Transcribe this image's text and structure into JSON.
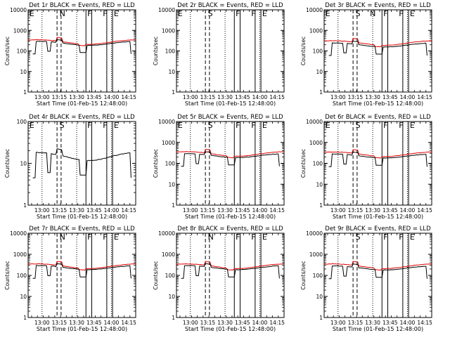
{
  "figure": {
    "time_axis": {
      "xlabel": "Start Time (01-Feb-15 12:48:00)",
      "range_min_from_start": [
        0,
        93
      ],
      "tick_labels": [
        "13:00",
        "13:15",
        "13:30",
        "13:45",
        "14:00",
        "14:15"
      ],
      "tick_min_from_start": [
        12,
        27,
        42,
        57,
        72,
        87
      ]
    },
    "y_axis": {
      "ylabel": "Counts/sec",
      "scale": "log"
    }
  },
  "chart_data": [
    {
      "type": "line",
      "title": "Det 1r BLACK = Events, RED = LLD",
      "ylim": [
        1,
        10000
      ],
      "ytick_labels": [
        "1",
        "10",
        "100",
        "1000",
        "10000"
      ],
      "ytick_values": [
        1,
        10,
        100,
        1000,
        10000
      ],
      "markers": [
        "E",
        "N",
        "F",
        "F",
        "E"
      ],
      "red_level": 280,
      "black_level": 240,
      "gaps": true,
      "y_pos": 0
    },
    {
      "type": "line",
      "title": "Det 2r BLACK = Events, RED = LLD",
      "ylim": [
        1,
        10000
      ],
      "ytick_labels": [
        "1",
        "10",
        "100",
        "1000",
        "10000"
      ],
      "ytick_values": [
        1,
        10,
        100,
        1000,
        10000
      ],
      "markers": [
        "E",
        "S",
        "F",
        "F",
        "E"
      ],
      "red_level": null,
      "black_level": null,
      "gaps": false,
      "y_pos": 0
    },
    {
      "type": "line",
      "title": "Det 3r BLACK = Events, RED = LLD",
      "ylim": [
        1,
        10000
      ],
      "ytick_labels": [
        "1",
        "10",
        "100",
        "1000",
        "10000"
      ],
      "ytick_values": [
        1,
        10,
        100,
        1000,
        10000
      ],
      "markers": [
        "E",
        "S",
        "N",
        "F",
        "F",
        "E"
      ],
      "red_level": 250,
      "black_level": 200,
      "gaps": true,
      "y_pos": 0
    },
    {
      "type": "line",
      "title": "Det 4r BLACK = Events, RED = LLD",
      "ylim": [
        1,
        100
      ],
      "ytick_labels": [
        "1",
        "10",
        "100"
      ],
      "ytick_values": [
        1,
        10,
        100
      ],
      "markers": [
        "E",
        "S",
        "F",
        "F",
        "E"
      ],
      "red_level": null,
      "black_level": 15,
      "gaps": true,
      "y_pos": 0
    },
    {
      "type": "line",
      "title": "Det 5r BLACK = Events, RED = LLD",
      "ylim": [
        1,
        10000
      ],
      "ytick_labels": [
        "1",
        "10",
        "100",
        "1000",
        "10000"
      ],
      "ytick_values": [
        1,
        10,
        100,
        1000,
        10000
      ],
      "markers": [
        "E",
        "S",
        "F",
        "F",
        "E"
      ],
      "red_level": 290,
      "black_level": 240,
      "gaps": true,
      "y_pos": 0
    },
    {
      "type": "line",
      "title": "Det 6r BLACK = Events, RED = LLD",
      "ylim": [
        1,
        10000
      ],
      "ytick_labels": [
        "1",
        "10",
        "100",
        "1000",
        "10000"
      ],
      "ytick_values": [
        1,
        10,
        100,
        1000,
        10000
      ],
      "markers": [
        "E",
        "S",
        "F",
        "F",
        "E"
      ],
      "red_level": 280,
      "black_level": 230,
      "gaps": true,
      "y_pos": 0
    },
    {
      "type": "line",
      "title": "Det 7r BLACK = Events, RED = LLD",
      "ylim": [
        1,
        10000
      ],
      "ytick_labels": [
        "1",
        "10",
        "100",
        "1000",
        "10000"
      ],
      "ytick_values": [
        1,
        10,
        100,
        1000,
        10000
      ],
      "markers": [
        "N",
        "F",
        "F",
        "E"
      ],
      "red_level": 280,
      "black_level": 240,
      "gaps": true,
      "y_pos": 0
    },
    {
      "type": "line",
      "title": "Det 8r BLACK = Events, RED = LLD",
      "ylim": [
        1,
        10000
      ],
      "ytick_labels": [
        "1",
        "10",
        "100",
        "1000",
        "10000"
      ],
      "ytick_values": [
        1,
        10,
        100,
        1000,
        10000
      ],
      "markers": [
        "N",
        "F",
        "F",
        "E"
      ],
      "red_level": 280,
      "black_level": 240,
      "gaps": true,
      "y_pos": 0
    },
    {
      "type": "line",
      "title": "Det 9r BLACK = Events, RED = LLD",
      "ylim": [
        1,
        10000
      ],
      "ytick_labels": [
        "1",
        "10",
        "100",
        "1000",
        "10000"
      ],
      "ytick_values": [
        1,
        10,
        100,
        1000,
        10000
      ],
      "markers": [
        "S",
        "F",
        "F",
        "E"
      ],
      "red_level": 280,
      "black_level": 230,
      "gaps": true,
      "y_pos": 0
    }
  ]
}
